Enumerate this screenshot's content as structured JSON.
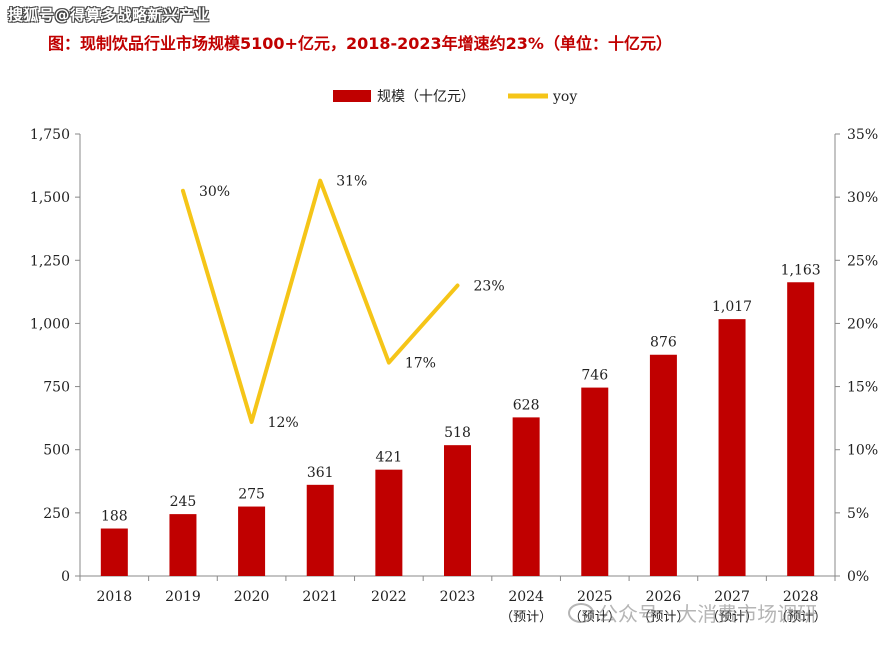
{
  "watermark_top": "搜狐号@得算多战略新兴产业",
  "title": "图：现制饮品行业市场规模5100+亿元，2018-2023年增速约23%（单位：十亿元）",
  "watermark_bottom": "公众号 · 大消费市场调研",
  "chart_data": {
    "type": "bar+line",
    "categories": [
      "2018",
      "2019",
      "2020",
      "2021",
      "2022",
      "2023",
      "2024",
      "2025",
      "2026",
      "2027",
      "2028"
    ],
    "category_sublabels": [
      "",
      "",
      "",
      "",
      "",
      "",
      "（预计）",
      "（预计）",
      "（预计）",
      "（预计）",
      "（预计）"
    ],
    "series": [
      {
        "name": "规模（十亿元）",
        "type": "bar",
        "axis": "left",
        "color": "#c00000",
        "values": [
          188,
          245,
          275,
          361,
          421,
          518,
          628,
          746,
          876,
          1017,
          1163
        ],
        "data_labels": [
          "188",
          "245",
          "275",
          "361",
          "421",
          "518",
          "628",
          "746",
          "876",
          "1,017",
          "1,163"
        ]
      },
      {
        "name": "yoy",
        "type": "line",
        "axis": "right",
        "color": "#f5c518",
        "values": [
          null,
          30.5,
          12.2,
          31.3,
          16.9,
          23.0,
          null,
          null,
          null,
          null,
          null
        ],
        "data_labels": [
          "",
          "30%",
          "12%",
          "31%",
          "17%",
          "23%",
          "",
          "",
          "",
          "",
          ""
        ]
      }
    ],
    "y_left": {
      "ylim": [
        0,
        1750
      ],
      "ticks": [
        0,
        250,
        500,
        750,
        1000,
        1250,
        1500,
        1750
      ],
      "tick_labels": [
        "0",
        "250",
        "500",
        "750",
        "1,000",
        "1,250",
        "1,500",
        "1,750"
      ]
    },
    "y_right": {
      "ylim": [
        0,
        35
      ],
      "ticks": [
        0,
        5,
        10,
        15,
        20,
        25,
        30,
        35
      ],
      "tick_labels": [
        "0%",
        "5%",
        "10%",
        "15%",
        "20%",
        "25%",
        "30%",
        "35%"
      ]
    },
    "legend_position": "top-center",
    "grid": false
  }
}
